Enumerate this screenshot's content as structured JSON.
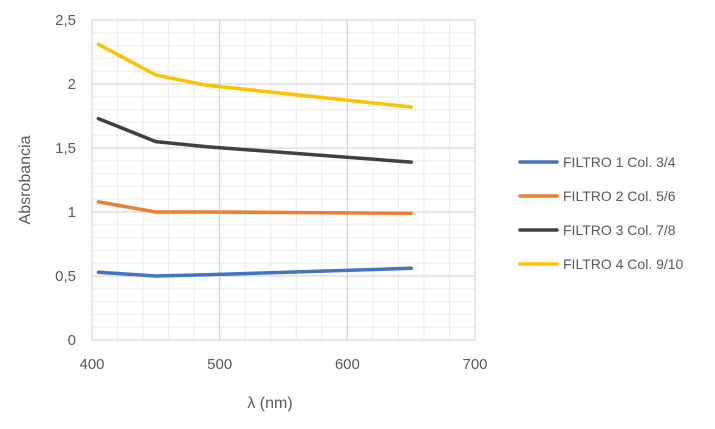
{
  "chart_data": {
    "type": "line",
    "title": "",
    "xlabel": "λ (nm)",
    "ylabel": "Absrobancia",
    "xlim": [
      400,
      700
    ],
    "ylim": [
      0,
      2.5
    ],
    "x_ticks": [
      400,
      500,
      600,
      700
    ],
    "x_tick_labels": [
      "400",
      "500",
      "600",
      "700"
    ],
    "y_ticks": [
      0,
      0.5,
      1,
      1.5,
      2,
      2.5
    ],
    "y_tick_labels": [
      "0",
      "0,5",
      "1",
      "1,5",
      "2",
      "2,5"
    ],
    "grid": true,
    "legend_position": "right",
    "series": [
      {
        "name": "FILTRO 1 Col. 3/4",
        "color": "#4472C4",
        "x": [
          405,
          450,
          490,
          650
        ],
        "y": [
          0.53,
          0.5,
          0.51,
          0.56
        ]
      },
      {
        "name": "FILTRO 2 Col. 5/6",
        "color": "#ED7D31",
        "x": [
          405,
          450,
          490,
          650
        ],
        "y": [
          1.08,
          1.0,
          1.0,
          0.99
        ]
      },
      {
        "name": "FILTRO 3 Col. 7/8",
        "color": "#404040",
        "x": [
          405,
          450,
          490,
          650
        ],
        "y": [
          1.73,
          1.55,
          1.51,
          1.39
        ]
      },
      {
        "name": "FILTRO 4 Col. 9/10",
        "color": "#FFC000",
        "x": [
          405,
          450,
          490,
          650
        ],
        "y": [
          2.31,
          2.07,
          1.99,
          1.82
        ]
      }
    ]
  }
}
